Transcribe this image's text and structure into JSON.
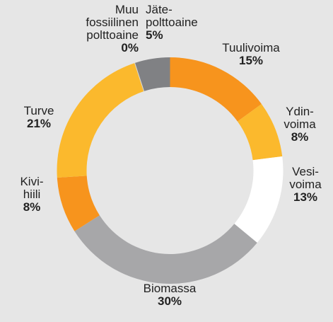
{
  "chart_data": {
    "type": "donut",
    "categories": [
      [
        "Tuulivoima"
      ],
      [
        "Ydin-",
        "voima"
      ],
      [
        "Vesi-",
        "voima"
      ],
      [
        "Biomassa"
      ],
      [
        "Kivi-",
        "hiili"
      ],
      [
        "Turve"
      ],
      [
        "Muu",
        "fossiilinen",
        "polttoaine"
      ],
      [
        "Jäte-",
        "polttoaine"
      ]
    ],
    "values": [
      15,
      8,
      13,
      30,
      8,
      21,
      0,
      5
    ],
    "value_labels": [
      "15%",
      "8%",
      "13%",
      "30%",
      "8%",
      "21%",
      "0%",
      "5%"
    ],
    "colors": [
      "#f7941d",
      "#fbb92d",
      "#ffffff",
      "#a7a7a9",
      "#f7941d",
      "#fbb92d",
      "#d9d9d9",
      "#808184"
    ]
  }
}
